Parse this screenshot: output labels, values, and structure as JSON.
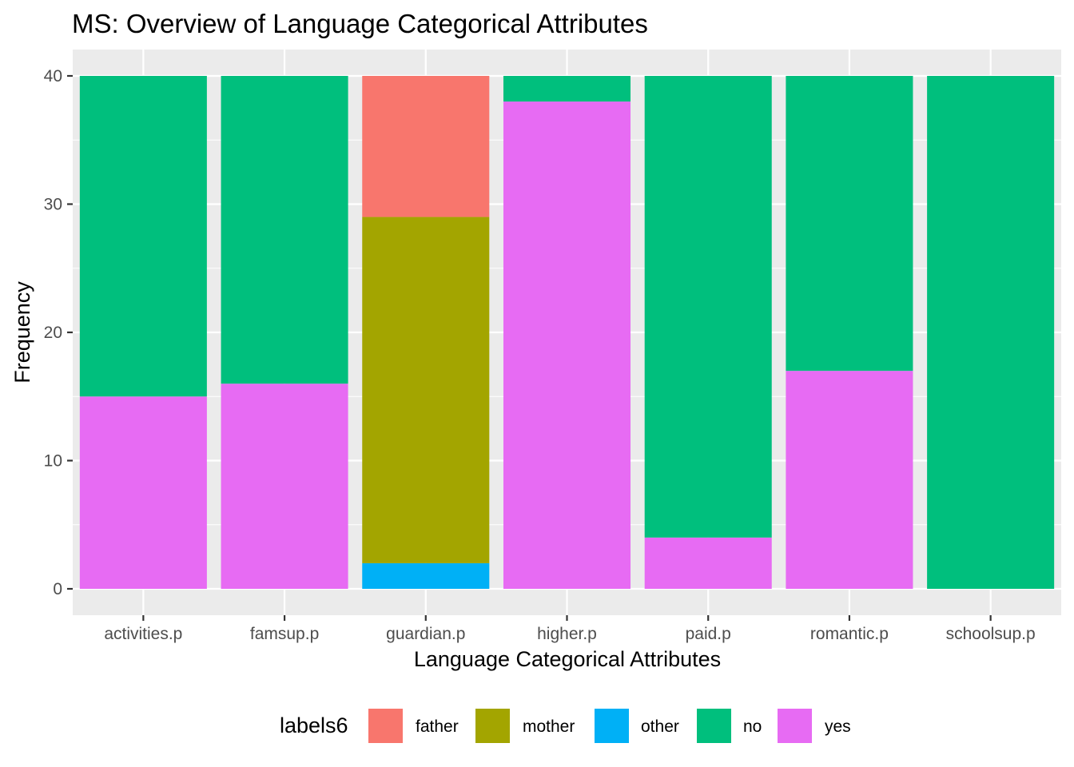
{
  "chart_data": {
    "type": "bar",
    "stacked": true,
    "title": "MS: Overview of Language Categorical Attributes",
    "xlabel": "Language Categorical Attributes",
    "ylabel": "Frequency",
    "ylim": [
      0,
      41.9
    ],
    "yticks": [
      0,
      10,
      20,
      30,
      40
    ],
    "grid": true,
    "legend_position": "bottom",
    "legend_title": "labels6",
    "categories": [
      "activities.p",
      "famsup.p",
      "guardian.p",
      "higher.p",
      "paid.p",
      "romantic.p",
      "schoolsup.p"
    ],
    "stack_order_bottom_to_top": [
      "other",
      "yes",
      "mother",
      "no",
      "father"
    ],
    "series": [
      {
        "name": "father",
        "color": "#F8766D",
        "values": [
          0,
          0,
          11,
          0,
          0,
          0,
          0
        ]
      },
      {
        "name": "mother",
        "color": "#A3A500",
        "values": [
          0,
          0,
          27,
          0,
          0,
          0,
          0
        ]
      },
      {
        "name": "other",
        "color": "#00B0F6",
        "values": [
          0,
          0,
          2,
          0,
          0,
          0,
          0
        ]
      },
      {
        "name": "no",
        "color": "#00BF7D",
        "values": [
          25,
          24,
          0,
          2,
          36,
          23,
          40
        ]
      },
      {
        "name": "yes",
        "color": "#E76BF3",
        "values": [
          15,
          16,
          0,
          38,
          4,
          17,
          0
        ]
      }
    ]
  }
}
